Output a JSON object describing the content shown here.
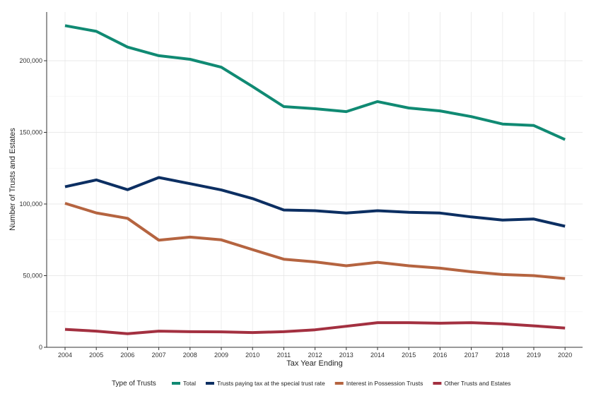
{
  "chart_data": {
    "type": "line",
    "x": [
      2004,
      2005,
      2006,
      2007,
      2008,
      2009,
      2010,
      2011,
      2012,
      2013,
      2014,
      2015,
      2016,
      2017,
      2018,
      2019,
      2020
    ],
    "series": [
      {
        "name": "Total",
        "color": "#108a73",
        "values": [
          224500,
          220500,
          209500,
          203500,
          201000,
          195500,
          182000,
          168000,
          166500,
          164500,
          171500,
          167000,
          165000,
          161000,
          155800,
          154800,
          145000
        ]
      },
      {
        "name": "Trusts paying tax at the special trust rate",
        "color": "#0c2f62",
        "values": [
          112000,
          116800,
          110000,
          118500,
          114200,
          109800,
          103800,
          95800,
          95300,
          93700,
          95300,
          94200,
          93700,
          91000,
          88800,
          89500,
          84500
        ]
      },
      {
        "name": "Interest in Possession Trusts",
        "color": "#b56440",
        "values": [
          100500,
          93800,
          90000,
          74800,
          76900,
          75000,
          68200,
          61500,
          59600,
          56900,
          59300,
          56900,
          55200,
          52700,
          50800,
          50000,
          48000
        ]
      },
      {
        "name": "Other Trusts and Estates",
        "color": "#a33040",
        "values": [
          12500,
          11300,
          9500,
          11300,
          10900,
          10800,
          10300,
          10900,
          12200,
          14700,
          17200,
          17200,
          16800,
          17200,
          16400,
          15000,
          13400
        ]
      }
    ],
    "ylim": [
      0,
      234000
    ],
    "yticks": [
      0,
      50000,
      100000,
      150000,
      200000
    ],
    "ytick_labels": [
      "0",
      "50,000",
      "100,000",
      "150,000",
      "200,000"
    ],
    "xlabel": "Tax Year Ending",
    "ylabel": "Number of Trusts and Estates",
    "legend_title": "Type of Trusts",
    "legend_position": "bottom",
    "grid": true
  }
}
